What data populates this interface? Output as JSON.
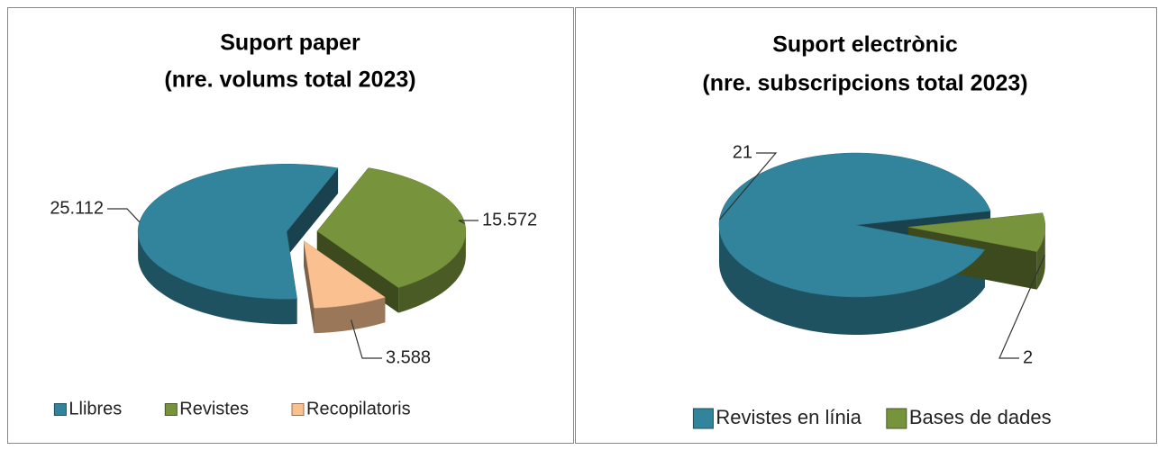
{
  "chart_data": [
    {
      "type": "pie",
      "title": [
        "Suport paper",
        "(nre. volums total 2023)"
      ],
      "categories": [
        "Llibres",
        "Revistes",
        "Recopilatoris"
      ],
      "values": [
        25112,
        15572,
        3588
      ],
      "value_labels": [
        "25.112",
        "15.572",
        "3.588"
      ],
      "colors": [
        "#31849b",
        "#77933c",
        "#fac090"
      ],
      "legend": "bottom"
    },
    {
      "type": "pie",
      "title": [
        "Suport electrònic",
        "(nre. subscripcions total 2023)"
      ],
      "categories": [
        "Revistes en línia",
        "Bases de dades"
      ],
      "values": [
        21,
        2
      ],
      "value_labels": [
        "21",
        "2"
      ],
      "colors": [
        "#31849b",
        "#77933c"
      ],
      "legend": "bottom"
    }
  ]
}
